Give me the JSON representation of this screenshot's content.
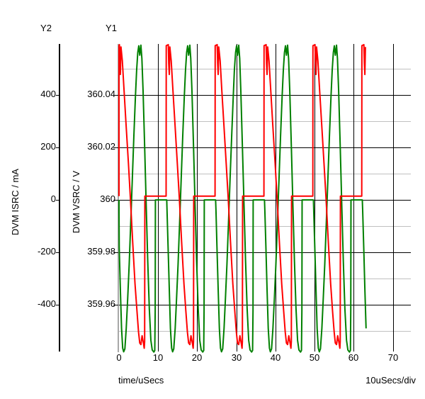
{
  "labels": {
    "y2_axis_name": "Y2",
    "y1_axis_name": "Y1",
    "y2_title": "DVM ISRC / mA",
    "y1_title": "DVM VSRC / V",
    "x_title": "time/uSecs",
    "scale_note": "10uSecs/div"
  },
  "colors": {
    "vsrc_trace": "#008000",
    "isrc_trace": "#ff0000",
    "major_grid": "#000000",
    "minor_grid": "#c0c0c0",
    "y1_axis_line": "#a8a8a8",
    "y2_axis_line": "#000000"
  },
  "chart_data": {
    "type": "line",
    "title": "",
    "x_axis": {
      "label": "time/uSecs",
      "scale_note": "10uSecs/div",
      "min": 0,
      "max": 74.6,
      "ticks": [
        {
          "v": 0,
          "label": "0"
        },
        {
          "v": 10,
          "label": "10"
        },
        {
          "v": 20,
          "label": "20"
        },
        {
          "v": 30,
          "label": "30"
        },
        {
          "v": 40,
          "label": "40"
        },
        {
          "v": 50,
          "label": "50"
        },
        {
          "v": 60,
          "label": "60"
        },
        {
          "v": 70,
          "label": "70"
        }
      ]
    },
    "y1_axis": {
      "label": "DVM VSRC / V",
      "min": 359.9422,
      "max": 360.0595,
      "ticks": [
        {
          "v": 360.04,
          "label": "360.04"
        },
        {
          "v": 360.02,
          "label": "360.02"
        },
        {
          "v": 360.0,
          "label": "360"
        },
        {
          "v": 359.98,
          "label": "359.98"
        },
        {
          "v": 359.96,
          "label": "359.96"
        }
      ],
      "minor_ticks": [
        360.05,
        360.03,
        360.01,
        359.99,
        359.97,
        359.95
      ]
    },
    "y2_axis": {
      "label": "DVM ISRC / mA",
      "min": -578.4,
      "max": 594.6,
      "ticks": [
        {
          "v": 400,
          "label": "400"
        },
        {
          "v": 200,
          "label": "200"
        },
        {
          "v": 0,
          "label": "0"
        },
        {
          "v": -200,
          "label": "-200"
        },
        {
          "v": -400,
          "label": "-400"
        }
      ]
    },
    "series": [
      {
        "name": "DVM VSRC",
        "axis": "y1_axis",
        "color": "#008000",
        "bursts": [
          0,
          12.5,
          25,
          37.5,
          50,
          62.5
        ],
        "t_end": 63.4,
        "pattern": [
          [
            -0.3,
            360.0
          ],
          [
            -0.22,
            359.996
          ],
          [
            0.05,
            359.982
          ],
          [
            0.35,
            359.966
          ],
          [
            0.65,
            359.951
          ],
          [
            0.95,
            359.9435
          ],
          [
            1.2,
            359.9421
          ],
          [
            1.5,
            359.9432
          ],
          [
            1.85,
            359.951
          ],
          [
            2.2,
            359.962
          ],
          [
            2.6,
            359.9755
          ],
          [
            3.0,
            359.9915
          ],
          [
            3.4,
            360.008
          ],
          [
            3.8,
            360.0245
          ],
          [
            4.2,
            360.0395
          ],
          [
            4.5,
            360.0495
          ],
          [
            4.8,
            360.0562
          ],
          [
            5.05,
            360.0588
          ],
          [
            5.3,
            360.0552
          ],
          [
            5.6,
            360.059
          ],
          [
            5.85,
            360.054
          ],
          [
            6.15,
            360.0415
          ],
          [
            6.55,
            360.0205
          ],
          [
            6.95,
            359.998
          ],
          [
            7.35,
            359.9765
          ],
          [
            7.75,
            359.9585
          ],
          [
            8.15,
            359.9465
          ],
          [
            8.5,
            359.9428
          ],
          [
            8.9,
            359.942
          ],
          [
            9.15,
            359.9426
          ],
          [
            9.25,
            359.958
          ],
          [
            9.3,
            360.0
          ],
          [
            12.2,
            360.0
          ]
        ]
      },
      {
        "name": "DVM ISRC",
        "axis": "y2_axis",
        "color": "#ff0000",
        "bursts": [
          0,
          12.5,
          25,
          37.5,
          50,
          62.5
        ],
        "t_end": 63.0,
        "pattern": [
          [
            -0.45,
            14
          ],
          [
            -0.42,
            588
          ],
          [
            0.1,
            592
          ],
          [
            0.22,
            520
          ],
          [
            0.35,
            478
          ],
          [
            0.5,
            583
          ],
          [
            0.85,
            530
          ],
          [
            1.3,
            415
          ],
          [
            1.8,
            290
          ],
          [
            2.4,
            140
          ],
          [
            2.9,
            10
          ],
          [
            3.5,
            -160
          ],
          [
            4.1,
            -320
          ],
          [
            4.6,
            -425
          ],
          [
            5.0,
            -505
          ],
          [
            5.3,
            -546
          ],
          [
            5.6,
            -552
          ],
          [
            5.9,
            -518
          ],
          [
            6.2,
            -542
          ],
          [
            6.45,
            -566
          ],
          [
            6.55,
            -540
          ],
          [
            6.6,
            14
          ],
          [
            12.05,
            14
          ]
        ]
      }
    ],
    "grid": {
      "major": true,
      "minor": true,
      "legend_position": "none"
    }
  }
}
